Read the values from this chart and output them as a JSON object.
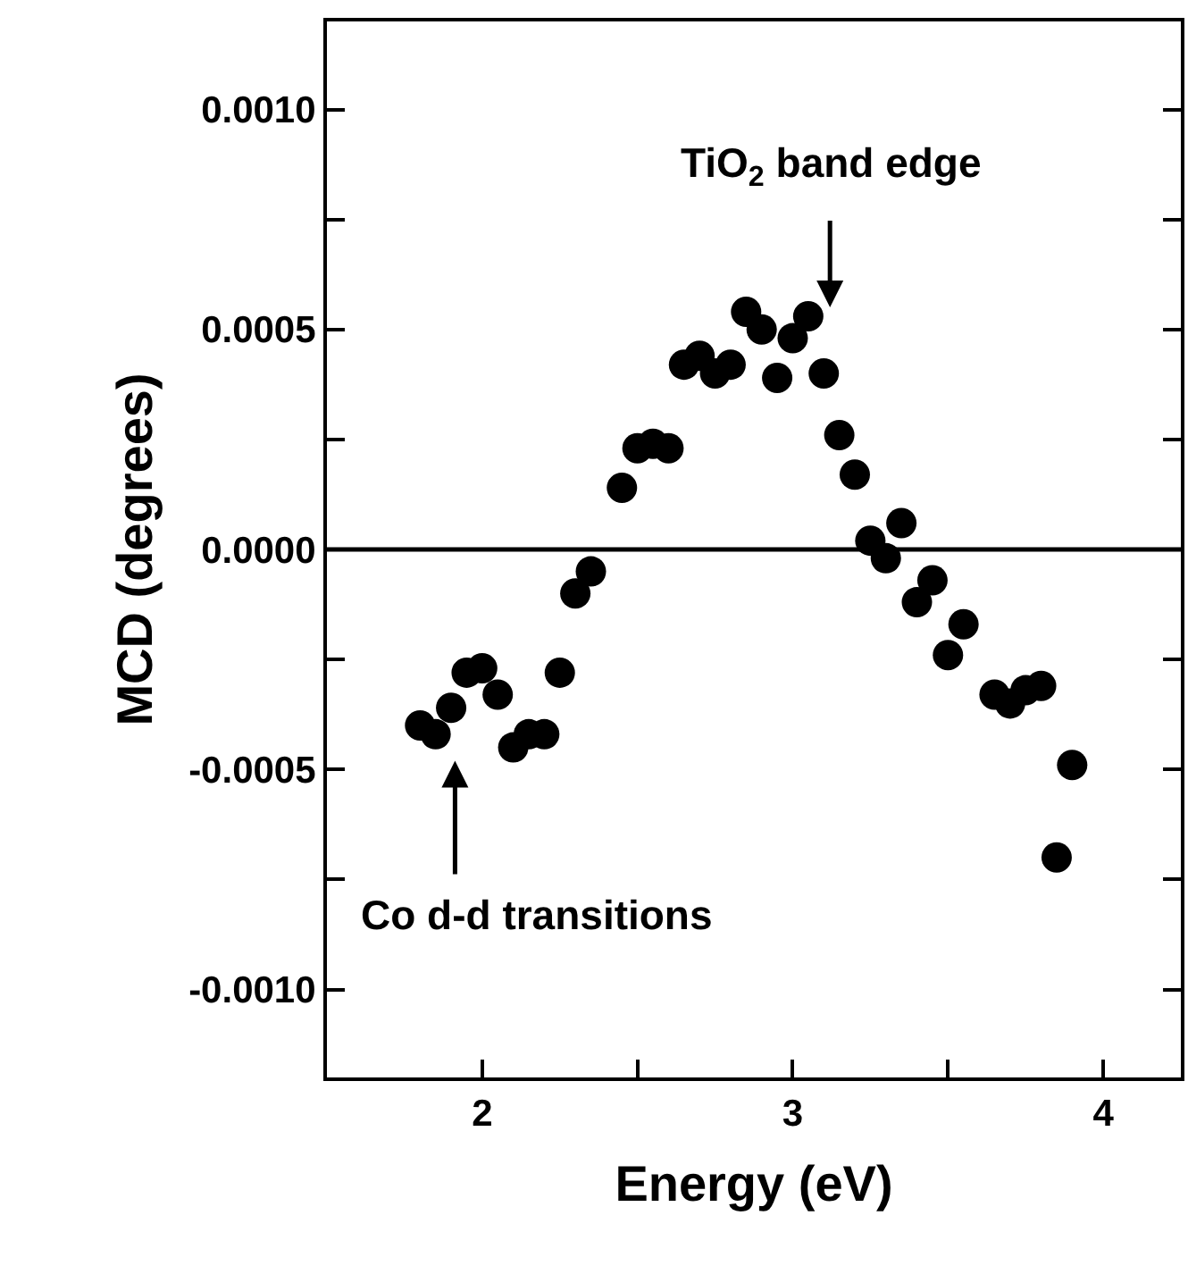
{
  "chart_data": {
    "type": "scatter",
    "xlabel": "Energy (eV)",
    "ylabel": "MCD (degrees)",
    "x": [
      1.8,
      1.85,
      1.9,
      1.95,
      2.0,
      2.05,
      2.1,
      2.15,
      2.2,
      2.25,
      2.3,
      2.35,
      2.45,
      2.5,
      2.55,
      2.6,
      2.65,
      2.7,
      2.75,
      2.8,
      2.85,
      2.9,
      2.95,
      3.0,
      3.05,
      3.1,
      3.15,
      3.2,
      3.25,
      3.3,
      3.35,
      3.4,
      3.45,
      3.5,
      3.55,
      3.65,
      3.7,
      3.75,
      3.8,
      3.85,
      3.9
    ],
    "series": [
      {
        "color": "#000000",
        "values": [
          -0.0004,
          -0.00042,
          -0.00036,
          -0.00028,
          -0.00027,
          -0.00033,
          -0.00045,
          -0.00042,
          -0.00042,
          -0.00028,
          -0.0001,
          -5e-05,
          0.00014,
          0.00023,
          0.00024,
          0.00023,
          0.00042,
          0.00044,
          0.0004,
          0.00042,
          0.00054,
          0.0005,
          0.00039,
          0.00048,
          0.00053,
          0.0004,
          0.00026,
          0.00017,
          2e-05,
          -2e-05,
          6e-05,
          -0.00012,
          -7e-05,
          -0.00024,
          -0.00017,
          -0.00033,
          -0.00035,
          -0.00032,
          -0.00031,
          -0.0007,
          -0.00049
        ]
      }
    ],
    "xlim": [
      1.5,
      4.25
    ],
    "ylim": [
      -0.0012,
      0.0012
    ],
    "xticks": [
      2,
      {
        "value": 2.5,
        "label": null
      },
      3,
      {
        "value": 3.5,
        "label": null
      },
      4
    ],
    "yticks": [
      {
        "value": -0.001,
        "label": "-0.0010"
      },
      {
        "value": -0.00075,
        "label": null
      },
      {
        "value": -0.0005,
        "label": "-0.0005"
      },
      {
        "value": -0.00025,
        "label": null
      },
      {
        "value": 0,
        "label": "0.0000"
      },
      {
        "value": 0.00025,
        "label": null
      },
      {
        "value": 0.0005,
        "label": "0.0005"
      },
      {
        "value": 0.00075,
        "label": null
      },
      {
        "value": 0.001,
        "label": "0.0010"
      }
    ],
    "ref_lines": [
      {
        "axis": "y",
        "value": 0,
        "color": "#000000",
        "line_style": "solid"
      }
    ],
    "annotations": [
      {
        "text": "TiO$_{2}$ band edge",
        "x": 3.12,
        "y": 0.00055
      },
      "Co d-d transitions"
    ],
    "marker": "circle"
  }
}
